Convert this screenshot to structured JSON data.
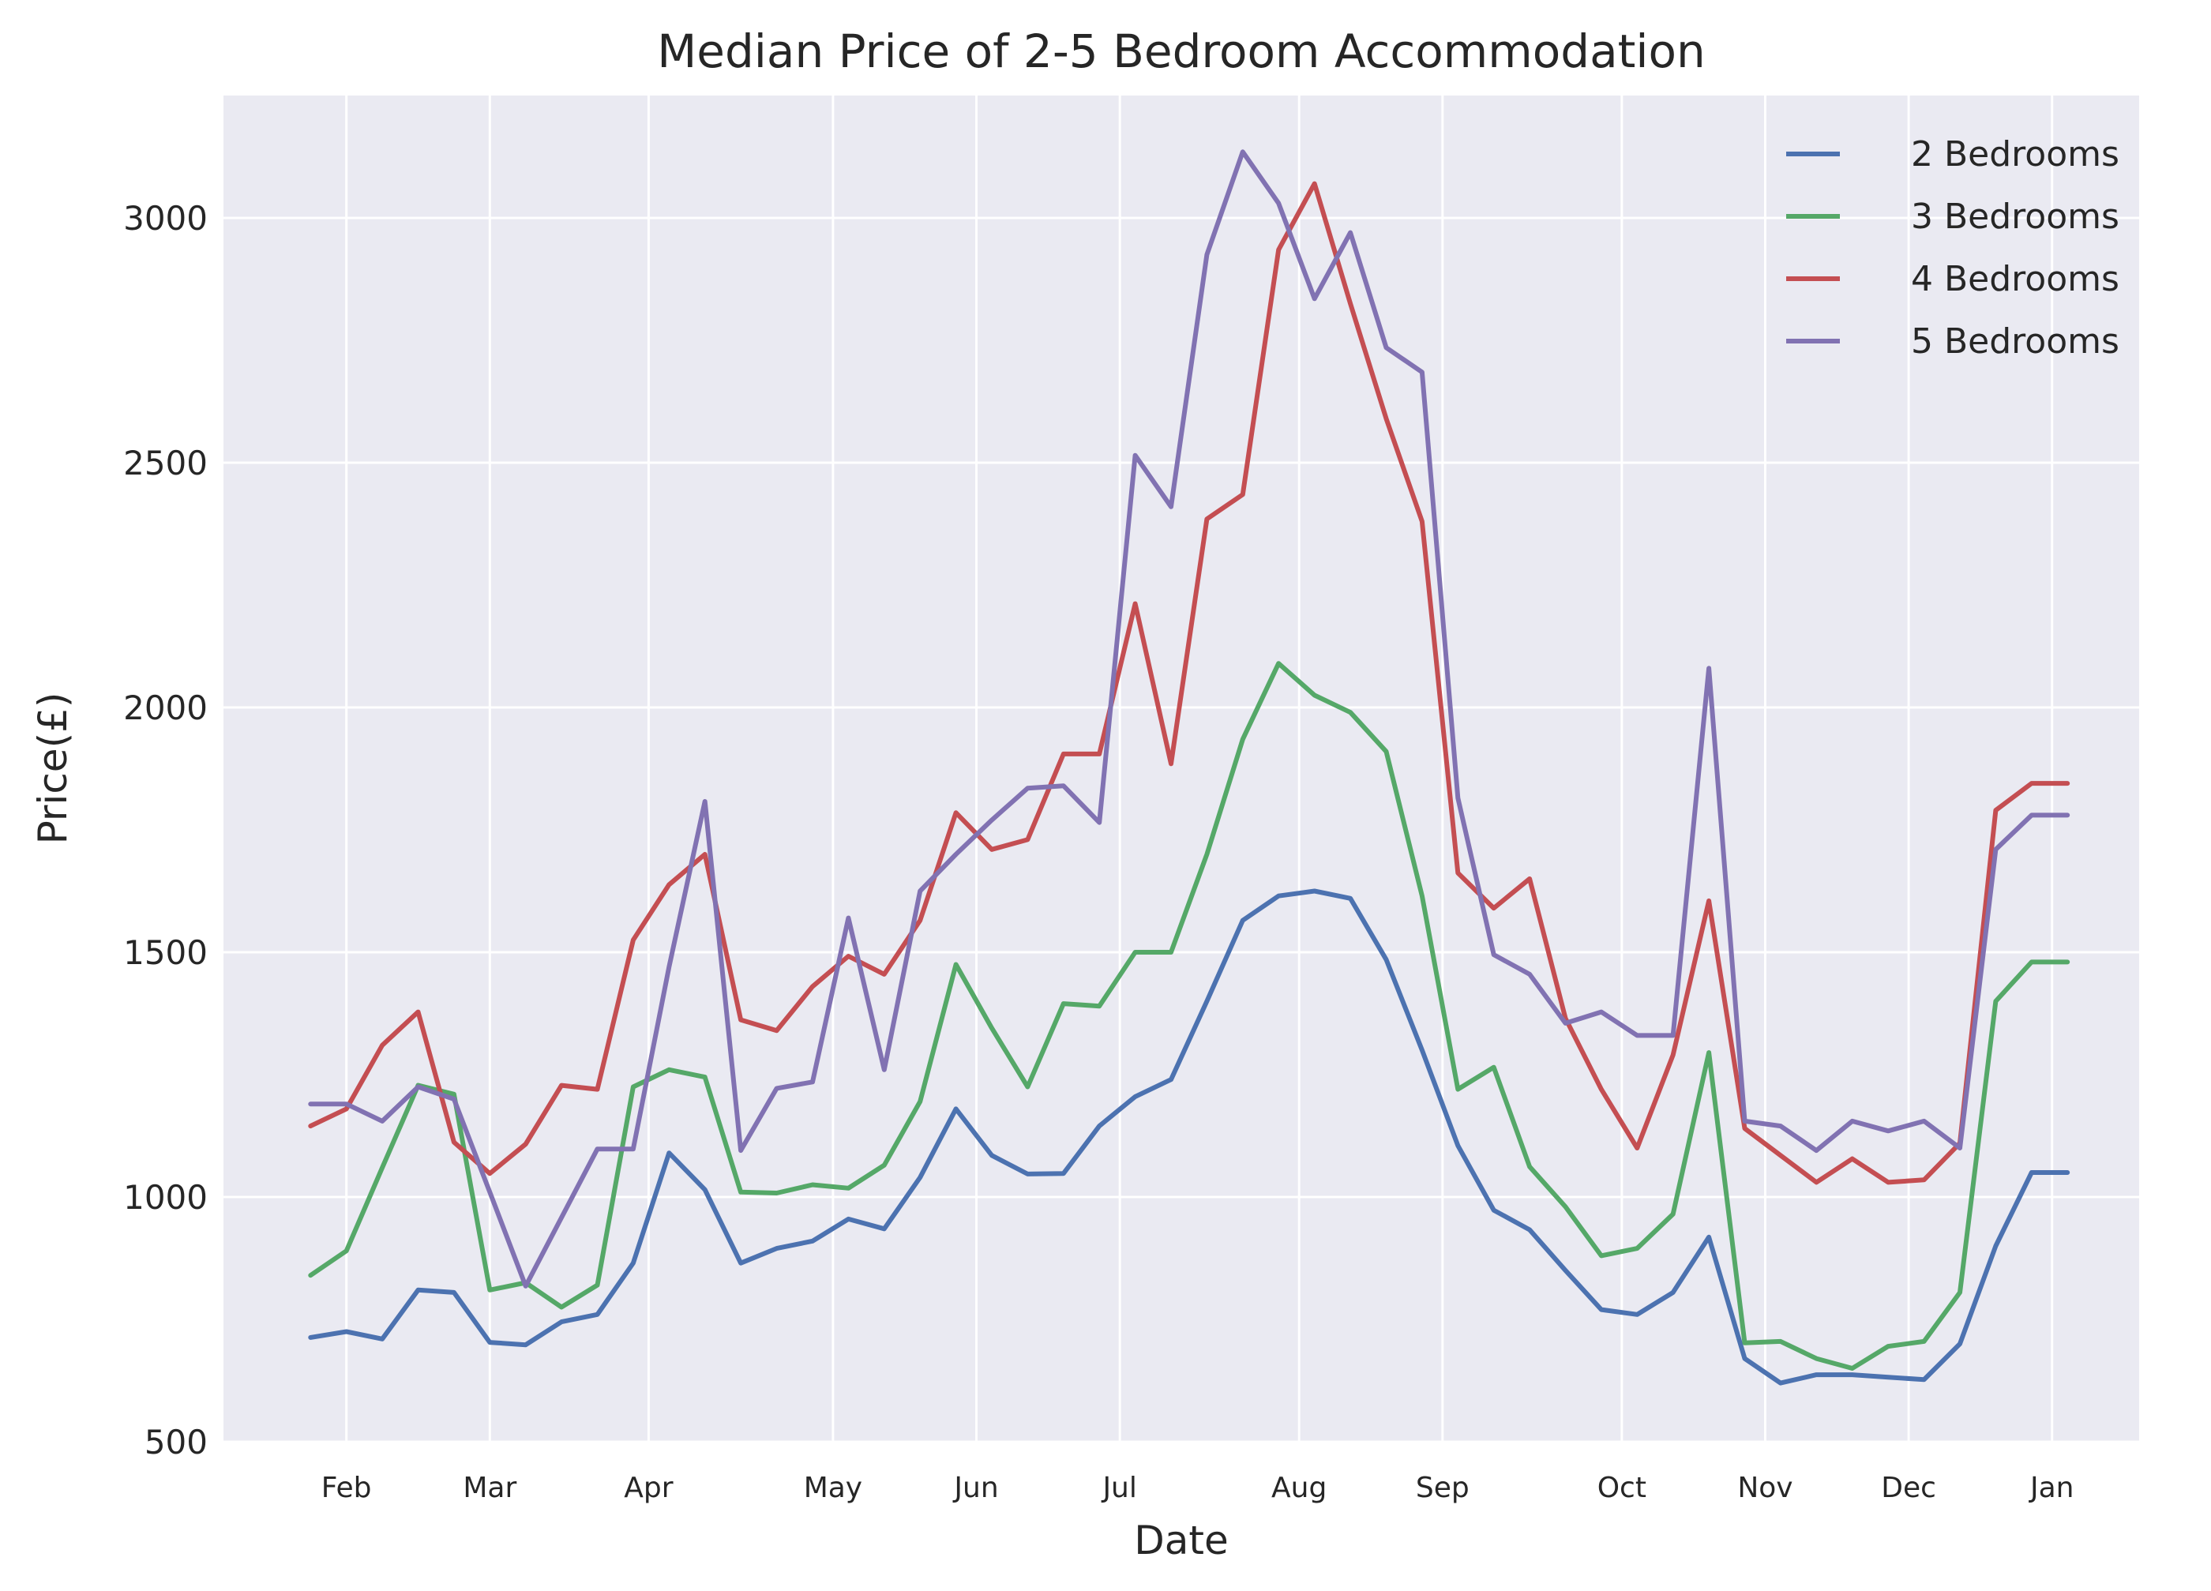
{
  "chart_data": {
    "type": "line",
    "title": "Median Price of 2-5 Bedroom Accommodation",
    "xlabel": "Date",
    "ylabel": "Price(£)",
    "x_scale": "weekly dates",
    "x": [
      "2017-01-25",
      "2017-02-01",
      "2017-02-08",
      "2017-02-15",
      "2017-02-22",
      "2017-03-01",
      "2017-03-08",
      "2017-03-15",
      "2017-03-22",
      "2017-03-29",
      "2017-04-05",
      "2017-04-12",
      "2017-04-19",
      "2017-04-26",
      "2017-05-03",
      "2017-05-10",
      "2017-05-17",
      "2017-05-24",
      "2017-05-31",
      "2017-06-07",
      "2017-06-14",
      "2017-06-21",
      "2017-06-28",
      "2017-07-05",
      "2017-07-12",
      "2017-07-19",
      "2017-07-26",
      "2017-08-02",
      "2017-08-09",
      "2017-08-16",
      "2017-08-23",
      "2017-08-30",
      "2017-09-06",
      "2017-09-13",
      "2017-09-20",
      "2017-09-27",
      "2017-10-04",
      "2017-10-11",
      "2017-10-18",
      "2017-10-25",
      "2017-11-01",
      "2017-11-08",
      "2017-11-15",
      "2017-11-22",
      "2017-11-29",
      "2017-12-06",
      "2017-12-13",
      "2017-12-20",
      "2017-12-27",
      "2018-01-03"
    ],
    "x_ticks": [
      {
        "date": "2017-02-01",
        "label": "Feb"
      },
      {
        "date": "2017-03-01",
        "label": "Mar"
      },
      {
        "date": "2017-04-01",
        "label": "Apr"
      },
      {
        "date": "2017-05-07",
        "label": "May"
      },
      {
        "date": "2017-06-04",
        "label": "Jun"
      },
      {
        "date": "2017-07-02",
        "label": "Jul"
      },
      {
        "date": "2017-08-06",
        "label": "Aug"
      },
      {
        "date": "2017-09-03",
        "label": "Sep"
      },
      {
        "date": "2017-10-08",
        "label": "Oct"
      },
      {
        "date": "2017-11-05",
        "label": "Nov"
      },
      {
        "date": "2017-12-03",
        "label": "Dec"
      },
      {
        "date": "2017-12-31",
        "label": "Jan"
      }
    ],
    "xlim": [
      "2017-01-08",
      "2018-01-17"
    ],
    "ylim": [
      500,
      3250
    ],
    "yticks": [
      500,
      1000,
      1500,
      2000,
      2500,
      3000
    ],
    "grid": true,
    "legend_position": "top-right",
    "series": [
      {
        "name": "2 Bedrooms",
        "color": "#4c72b0",
        "values": [
          713,
          725,
          710,
          810,
          805,
          703,
          698,
          745,
          760,
          865,
          1090,
          1015,
          865,
          895,
          910,
          955,
          935,
          1040,
          1180,
          1085,
          1047,
          1048,
          1145,
          1205,
          1240,
          1400,
          1565,
          1615,
          1625,
          1610,
          1485,
          1300,
          1105,
          973,
          933,
          850,
          770,
          760,
          805,
          918,
          670,
          620,
          637,
          637,
          632,
          627,
          700,
          900,
          1050,
          1050
        ]
      },
      {
        "name": "3 Bedrooms",
        "color": "#55a868",
        "values": [
          840,
          890,
          1060,
          1228,
          1210,
          810,
          825,
          775,
          820,
          1225,
          1260,
          1245,
          1010,
          1008,
          1025,
          1018,
          1065,
          1195,
          1475,
          1345,
          1225,
          1395,
          1390,
          1500,
          1500,
          1700,
          1935,
          2090,
          2025,
          1990,
          1910,
          1615,
          1220,
          1265,
          1062,
          980,
          880,
          895,
          965,
          1295,
          702,
          705,
          670,
          650,
          695,
          705,
          805,
          1400,
          1480,
          1480
        ]
      },
      {
        "name": "4 Bedrooms",
        "color": "#c44e52",
        "values": [
          1145,
          1180,
          1310,
          1378,
          1112,
          1048,
          1108,
          1228,
          1220,
          1525,
          1638,
          1700,
          1362,
          1340,
          1430,
          1492,
          1455,
          1565,
          1785,
          1710,
          1730,
          1905,
          1905,
          2212,
          1885,
          2385,
          2435,
          2935,
          3070,
          2825,
          2590,
          2380,
          1662,
          1590,
          1650,
          1365,
          1220,
          1100,
          1290,
          1605,
          1140,
          1085,
          1030,
          1078,
          1030,
          1035,
          1110,
          1790,
          1845,
          1845
        ]
      },
      {
        "name": "5 Bedrooms",
        "color": "#8172b2",
        "values": [
          1190,
          1190,
          1155,
          1225,
          1200,
          1010,
          818,
          958,
          1098,
          1098,
          1470,
          1808,
          1095,
          1222,
          1235,
          1570,
          1260,
          1625,
          1700,
          1770,
          1835,
          1840,
          1765,
          2515,
          2410,
          2925,
          3135,
          3030,
          2835,
          2970,
          2735,
          2685,
          1815,
          1495,
          1455,
          1355,
          1378,
          1330,
          1330,
          2080,
          1155,
          1145,
          1095,
          1155,
          1135,
          1155,
          1100,
          1710,
          1780,
          1780
        ]
      }
    ]
  }
}
